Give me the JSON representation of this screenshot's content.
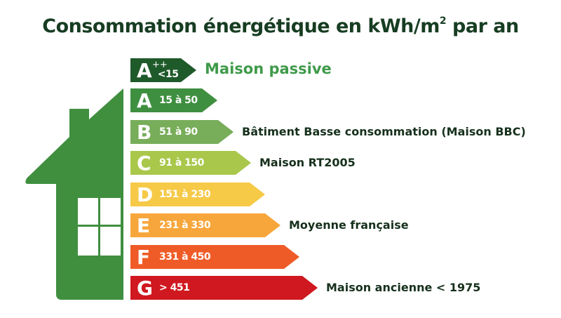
{
  "title": {
    "text": "Consommation énergétique en kWh/m",
    "superscript": "2",
    "suffix": " par an"
  },
  "classes": [
    {
      "letter": "A",
      "sup": "++",
      "range": "<15",
      "color": "#1f5a2a",
      "label": "Maison passive",
      "label_color": "#3f9a4a"
    },
    {
      "letter": "A",
      "range": "15 à 50",
      "color": "#3f8f40",
      "label": ""
    },
    {
      "letter": "B",
      "range": "51 à 90",
      "color": "#78ad5a",
      "label": "Bâtiment Basse consommation (Maison BBC)"
    },
    {
      "letter": "C",
      "range": "91 à 150",
      "color": "#a9c84b",
      "label": "Maison RT2005"
    },
    {
      "letter": "D",
      "range": "151 à 230",
      "color": "#f6c947",
      "label": ""
    },
    {
      "letter": "E",
      "range": "231 à 330",
      "color": "#f7a63b",
      "label": "Moyenne française"
    },
    {
      "letter": "F",
      "range": "331 à 450",
      "color": "#ef5b27",
      "label": ""
    },
    {
      "letter": "G",
      "range": "> 451",
      "color": "#cf181f",
      "label": "Maison ancienne < 1975"
    }
  ],
  "house_color": "#3f8f3f"
}
